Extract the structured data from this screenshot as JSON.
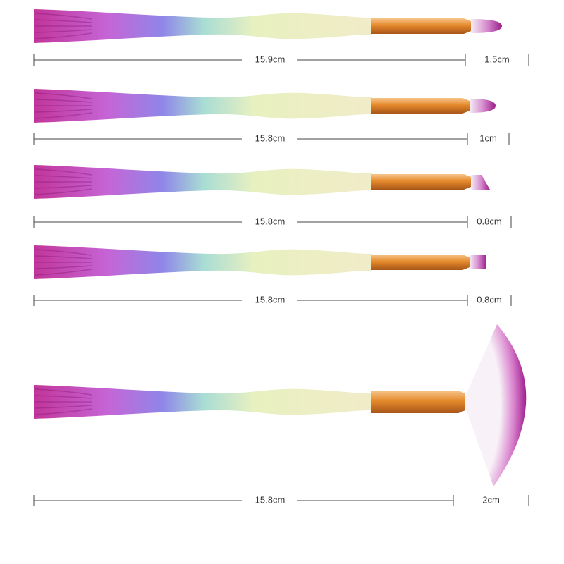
{
  "brushes": [
    {
      "handle_length": "15.9cm",
      "tip_length": "1.5cm"
    },
    {
      "handle_length": "15.8cm",
      "tip_length": "1cm"
    },
    {
      "handle_length": "15.8cm",
      "tip_length": "0.8cm"
    },
    {
      "handle_length": "15.8cm",
      "tip_length": "0.8cm"
    },
    {
      "handle_length": "15.8cm",
      "tip_length": "2cm"
    }
  ]
}
